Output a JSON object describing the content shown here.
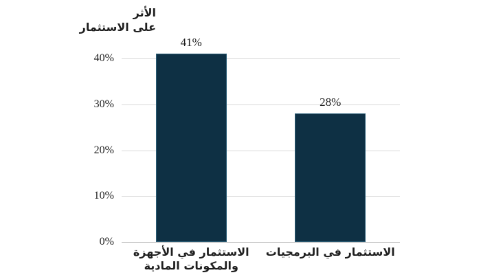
{
  "chart_data": {
    "type": "bar",
    "title": "",
    "ylabel": "الأثر على الاستثمار",
    "ylabel_lines": [
      "الأثر",
      "على الاستثمار"
    ],
    "xlabel": "",
    "categories": [
      "الاستثمار في الأجهزة والمكونات المادية",
      "الاستثمار في البرمجيات"
    ],
    "category_lines": [
      [
        "الاستثمار في الأجهزة",
        "والمكونات المادية"
      ],
      [
        "الاستثمار في البرمجيات"
      ]
    ],
    "values": [
      41,
      28
    ],
    "value_labels": [
      "41%",
      "28%"
    ],
    "yticks": [
      0,
      10,
      20,
      30,
      40
    ],
    "ytick_labels": [
      "0%",
      "10%",
      "20%",
      "30%",
      "40%"
    ],
    "ylim": [
      0,
      40
    ],
    "grid": true,
    "legend": false,
    "colors": {
      "bar_fill": "#0e3044",
      "bar_border": "#2c5f78",
      "gridline": "#d9d9d9",
      "axis_line": "#c2c2c2",
      "text": "#1f1f1f",
      "background": "#ffffff"
    }
  }
}
